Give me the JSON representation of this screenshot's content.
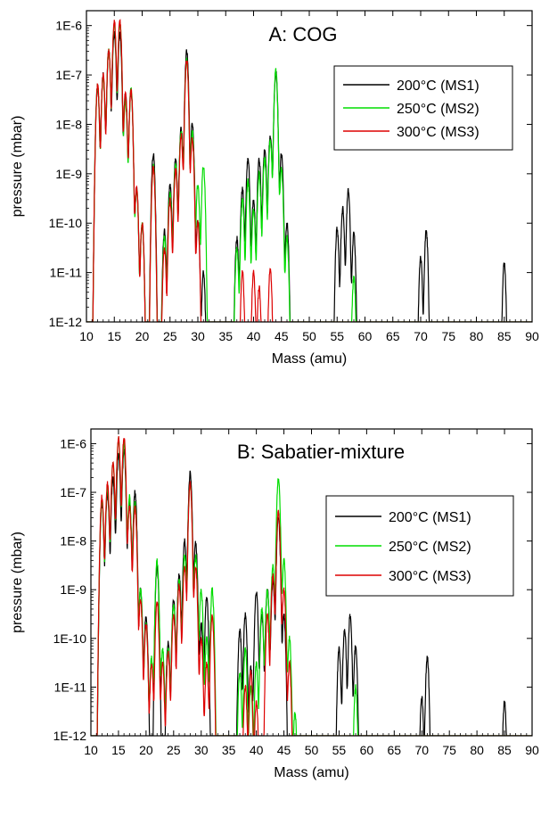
{
  "chart_data": [
    {
      "type": "line",
      "title": "A: COG",
      "xlabel": "Mass (amu)",
      "ylabel": "pressure (mbar)",
      "xlim": [
        10,
        90
      ],
      "ylim": [
        1e-12,
        2e-06
      ],
      "yscale": "log",
      "x_ticks": [
        "10",
        "15",
        "20",
        "25",
        "30",
        "35",
        "40",
        "45",
        "50",
        "55",
        "60",
        "65",
        "70",
        "75",
        "80",
        "85",
        "90"
      ],
      "y_ticks": [
        "1E-12",
        "1E-11",
        "1E-10",
        "1E-9",
        "1E-8",
        "1E-7",
        "1E-6"
      ],
      "legend_position": "top-right",
      "series": [
        {
          "name": "200°C (MS1)",
          "color": "#000000",
          "peaks": [
            [
              12,
              6e-08
            ],
            [
              13,
              1e-07
            ],
            [
              14,
              3e-07
            ],
            [
              15,
              7e-07
            ],
            [
              16,
              7e-07
            ],
            [
              17,
              4e-08
            ],
            [
              18,
              5e-08
            ],
            [
              19,
              5e-10
            ],
            [
              20,
              1e-10
            ],
            [
              22,
              2.5e-09
            ],
            [
              24,
              7e-11
            ],
            [
              25,
              6e-10
            ],
            [
              26,
              2e-09
            ],
            [
              27,
              8e-09
            ],
            [
              28,
              3e-07
            ],
            [
              29,
              1e-08
            ],
            [
              30,
              1.2e-10
            ],
            [
              31,
              1e-11
            ],
            [
              37,
              5e-11
            ],
            [
              38,
              5e-10
            ],
            [
              39,
              2e-09
            ],
            [
              40,
              3e-10
            ],
            [
              41,
              2e-09
            ],
            [
              42,
              3e-09
            ],
            [
              43,
              6e-09
            ],
            [
              44,
              1.2e-07
            ],
            [
              45,
              2.5e-09
            ],
            [
              46,
              1e-10
            ],
            [
              55,
              8e-11
            ],
            [
              56,
              2e-10
            ],
            [
              57,
              4.5e-10
            ],
            [
              58,
              6e-11
            ],
            [
              70,
              2e-11
            ],
            [
              71,
              7e-11
            ],
            [
              85,
              1.5e-11
            ]
          ]
        },
        {
          "name": "250°C (MS2)",
          "color": "#00dd00",
          "peaks": [
            [
              12,
              6e-08
            ],
            [
              13,
              9e-08
            ],
            [
              14,
              3e-07
            ],
            [
              15,
              1.1e-06
            ],
            [
              16,
              1.1e-06
            ],
            [
              17,
              3e-08
            ],
            [
              18,
              5e-08
            ],
            [
              19,
              5e-10
            ],
            [
              20,
              1e-10
            ],
            [
              22,
              1.5e-09
            ],
            [
              24,
              5e-11
            ],
            [
              25,
              4e-10
            ],
            [
              26,
              1.5e-09
            ],
            [
              27,
              7e-09
            ],
            [
              28,
              2e-07
            ],
            [
              29,
              7e-09
            ],
            [
              30,
              6e-10
            ],
            [
              31,
              1.5e-09
            ],
            [
              37,
              3e-11
            ],
            [
              38,
              3e-10
            ],
            [
              39,
              7e-10
            ],
            [
              40,
              2e-10
            ],
            [
              41,
              1e-09
            ],
            [
              42,
              2e-09
            ],
            [
              43,
              5e-09
            ],
            [
              44,
              1.2e-07
            ],
            [
              45,
              1.3e-09
            ],
            [
              46,
              5e-11
            ],
            [
              58,
              8e-12
            ]
          ]
        },
        {
          "name": "300°C (MS3)",
          "color": "#dd0000",
          "peaks": [
            [
              12,
              6e-08
            ],
            [
              13,
              1e-07
            ],
            [
              14,
              3e-07
            ],
            [
              15,
              1.2e-06
            ],
            [
              16,
              1.2e-06
            ],
            [
              17,
              4e-08
            ],
            [
              18,
              5e-08
            ],
            [
              19,
              5e-10
            ],
            [
              20,
              1e-10
            ],
            [
              22,
              1.4e-09
            ],
            [
              24,
              3e-11
            ],
            [
              25,
              3e-10
            ],
            [
              26,
              1.2e-09
            ],
            [
              27,
              6e-09
            ],
            [
              28,
              2e-07
            ],
            [
              29,
              5e-09
            ],
            [
              30,
              1e-10
            ],
            [
              38,
              1e-11
            ],
            [
              40,
              1e-11
            ],
            [
              41,
              5e-12
            ],
            [
              43,
              1.2e-11
            ]
          ]
        }
      ]
    },
    {
      "type": "line",
      "title": "B: Sabatier-mixture",
      "xlabel": "Mass (amu)",
      "ylabel": "pressure (mbar)",
      "xlim": [
        10,
        90
      ],
      "ylim": [
        1e-12,
        2e-06
      ],
      "yscale": "log",
      "x_ticks": [
        "10",
        "15",
        "20",
        "25",
        "30",
        "35",
        "40",
        "45",
        "50",
        "55",
        "60",
        "65",
        "70",
        "75",
        "80",
        "85",
        "90"
      ],
      "y_ticks": [
        "1E-12",
        "1E-11",
        "1E-10",
        "1E-9",
        "1E-8",
        "1E-7",
        "1E-6"
      ],
      "legend_position": "right",
      "series": [
        {
          "name": "200°C (MS1)",
          "color": "#000000",
          "peaks": [
            [
              12,
              6e-08
            ],
            [
              13,
              1e-07
            ],
            [
              14,
              2e-07
            ],
            [
              15,
              6e-07
            ],
            [
              16,
              7e-07
            ],
            [
              17,
              6e-08
            ],
            [
              18,
              1e-07
            ],
            [
              19,
              1e-09
            ],
            [
              20,
              3e-10
            ],
            [
              22,
              3e-09
            ],
            [
              24,
              8e-11
            ],
            [
              25,
              6e-10
            ],
            [
              26,
              2e-09
            ],
            [
              27,
              1e-08
            ],
            [
              28,
              2.5e-07
            ],
            [
              29,
              9e-09
            ],
            [
              30,
              2e-10
            ],
            [
              31,
              7e-10
            ],
            [
              37,
              1.5e-10
            ],
            [
              38,
              3e-10
            ],
            [
              39,
              2.5e-11
            ],
            [
              40,
              9e-10
            ],
            [
              41,
              3e-10
            ],
            [
              42,
              1e-09
            ],
            [
              43,
              1.5e-09
            ],
            [
              44,
              3e-08
            ],
            [
              45,
              3e-10
            ],
            [
              55,
              6e-11
            ],
            [
              56,
              1.5e-10
            ],
            [
              57,
              3e-10
            ],
            [
              58,
              7e-11
            ],
            [
              70,
              6e-12
            ],
            [
              71,
              4e-11
            ],
            [
              85,
              5e-12
            ]
          ]
        },
        {
          "name": "250°C (MS2)",
          "color": "#00dd00",
          "peaks": [
            [
              12,
              7e-08
            ],
            [
              13,
              1.3e-07
            ],
            [
              14,
              4e-07
            ],
            [
              15,
              1.2e-06
            ],
            [
              16,
              1e-06
            ],
            [
              17,
              8e-08
            ],
            [
              18,
              6e-08
            ],
            [
              19,
              1e-09
            ],
            [
              20,
              2e-10
            ],
            [
              21,
              4e-11
            ],
            [
              22,
              4e-09
            ],
            [
              23,
              6e-11
            ],
            [
              24,
              6e-11
            ],
            [
              25,
              5e-10
            ],
            [
              26,
              1.5e-09
            ],
            [
              27,
              5e-09
            ],
            [
              28,
              1.5e-07
            ],
            [
              29,
              5e-09
            ],
            [
              30,
              1e-09
            ],
            [
              31,
              1e-10
            ],
            [
              32,
              1e-09
            ],
            [
              37,
              2e-11
            ],
            [
              38,
              6e-11
            ],
            [
              39,
              1e-11
            ],
            [
              40,
              3e-11
            ],
            [
              41,
              4e-10
            ],
            [
              42,
              1e-09
            ],
            [
              43,
              3e-09
            ],
            [
              44,
              2e-07
            ],
            [
              45,
              4e-09
            ],
            [
              46,
              1e-10
            ],
            [
              47,
              3e-12
            ],
            [
              58,
              1e-11
            ]
          ]
        },
        {
          "name": "300°C (MS3)",
          "color": "#dd0000",
          "peaks": [
            [
              12,
              8e-08
            ],
            [
              13,
              1.5e-07
            ],
            [
              14,
              4e-07
            ],
            [
              15,
              1.3e-06
            ],
            [
              16,
              1.3e-06
            ],
            [
              17,
              5e-08
            ],
            [
              18,
              5e-08
            ],
            [
              19,
              6e-10
            ],
            [
              20,
              2e-10
            ],
            [
              21,
              3e-11
            ],
            [
              22,
              6e-10
            ],
            [
              23,
              3e-11
            ],
            [
              24,
              5e-11
            ],
            [
              25,
              3e-10
            ],
            [
              26,
              1.2e-09
            ],
            [
              27,
              3e-09
            ],
            [
              28,
              1.5e-07
            ],
            [
              29,
              3e-09
            ],
            [
              30,
              1e-10
            ],
            [
              31,
              3e-11
            ],
            [
              32,
              3e-10
            ],
            [
              38,
              1e-11
            ],
            [
              39,
              2e-11
            ],
            [
              40,
              5e-12
            ],
            [
              42,
              3e-10
            ],
            [
              43,
              2e-09
            ],
            [
              44,
              4e-08
            ],
            [
              45,
              1e-09
            ],
            [
              46,
              3e-11
            ]
          ]
        }
      ]
    }
  ]
}
